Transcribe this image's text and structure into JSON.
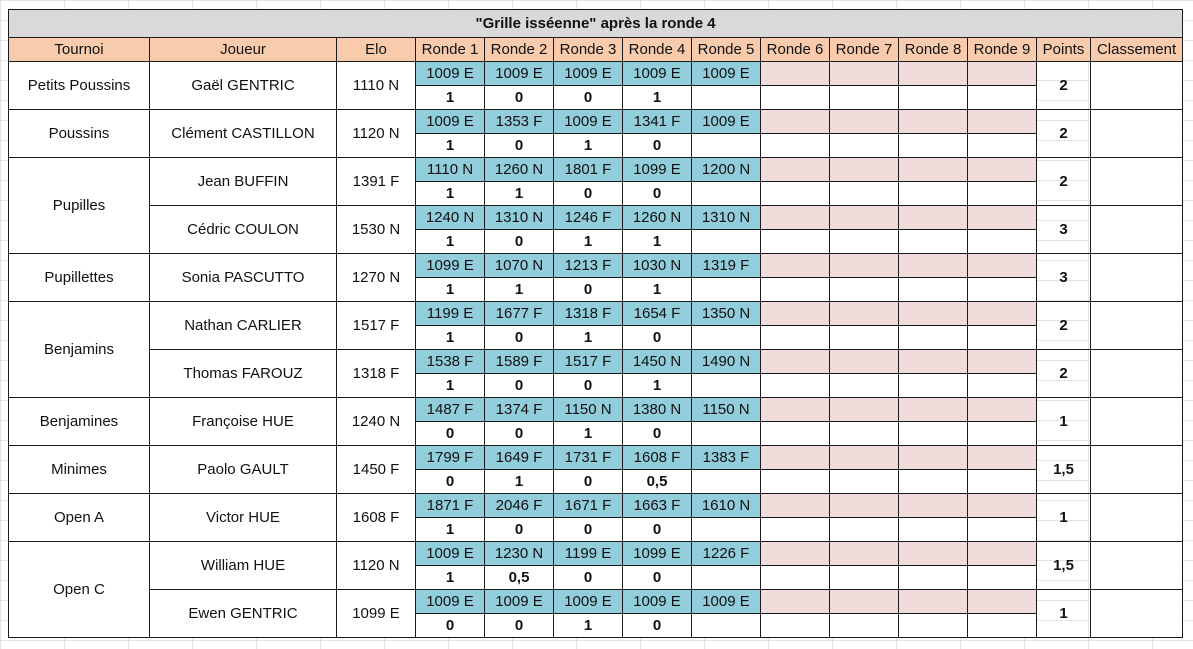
{
  "title": "\"Grille isséenne\" après la ronde 4",
  "headers": [
    "Tournoi",
    "Joueur",
    "Elo",
    "Ronde 1",
    "Ronde 2",
    "Ronde 3",
    "Ronde 4",
    "Ronde 5",
    "Ronde 6",
    "Ronde 7",
    "Ronde 8",
    "Ronde 9",
    "Points",
    "Classement"
  ],
  "colors": {
    "header": "#f8cbad",
    "title": "#d9d9d9",
    "opponent": "#92cddc",
    "future_round": "#f2dcdb"
  },
  "groups": [
    {
      "tournoi": "Petits Poussins",
      "players": [
        {
          "name": "Gaël GENTRIC",
          "elo": "1110 N",
          "opponents": [
            "1009 E",
            "1009 E",
            "1009 E",
            "1009 E",
            "1009 E"
          ],
          "results": [
            "1",
            "0",
            "0",
            "1"
          ],
          "points": "2"
        }
      ]
    },
    {
      "tournoi": "Poussins",
      "players": [
        {
          "name": "Clément CASTILLON",
          "elo": "1120 N",
          "opponents": [
            "1009 E",
            "1353 F",
            "1009 E",
            "1341 F",
            "1009 E"
          ],
          "results": [
            "1",
            "0",
            "1",
            "0"
          ],
          "points": "2"
        }
      ]
    },
    {
      "tournoi": "Pupilles",
      "players": [
        {
          "name": "Jean BUFFIN",
          "elo": "1391 F",
          "opponents": [
            "1110 N",
            "1260 N",
            "1801 F",
            "1099 E",
            "1200 N"
          ],
          "results": [
            "1",
            "1",
            "0",
            "0"
          ],
          "points": "2"
        },
        {
          "name": "Cédric COULON",
          "elo": "1530 N",
          "opponents": [
            "1240 N",
            "1310 N",
            "1246 F",
            "1260 N",
            "1310 N"
          ],
          "results": [
            "1",
            "0",
            "1",
            "1"
          ],
          "points": "3"
        }
      ]
    },
    {
      "tournoi": "Pupillettes",
      "players": [
        {
          "name": "Sonia PASCUTTO",
          "elo": "1270 N",
          "opponents": [
            "1099 E",
            "1070 N",
            "1213 F",
            "1030 N",
            "1319 F"
          ],
          "results": [
            "1",
            "1",
            "0",
            "1"
          ],
          "points": "3"
        }
      ]
    },
    {
      "tournoi": "Benjamins",
      "players": [
        {
          "name": "Nathan CARLIER",
          "elo": "1517 F",
          "opponents": [
            "1199 E",
            "1677 F",
            "1318 F",
            "1654 F",
            "1350 N"
          ],
          "results": [
            "1",
            "0",
            "1",
            "0"
          ],
          "points": "2"
        },
        {
          "name": "Thomas FAROUZ",
          "elo": "1318 F",
          "opponents": [
            "1538 F",
            "1589 F",
            "1517 F",
            "1450 N",
            "1490 N"
          ],
          "results": [
            "1",
            "0",
            "0",
            "1"
          ],
          "points": "2"
        }
      ]
    },
    {
      "tournoi": "Benjamines",
      "players": [
        {
          "name": "Françoise HUE",
          "elo": "1240 N",
          "opponents": [
            "1487 F",
            "1374 F",
            "1150 N",
            "1380 N",
            "1150 N"
          ],
          "results": [
            "0",
            "0",
            "1",
            "0"
          ],
          "points": "1"
        }
      ]
    },
    {
      "tournoi": "Minimes",
      "players": [
        {
          "name": "Paolo GAULT",
          "elo": "1450 F",
          "opponents": [
            "1799 F",
            "1649 F",
            "1731 F",
            "1608  F",
            "1383 F"
          ],
          "results": [
            "0",
            "1",
            "0",
            "0,5"
          ],
          "points": "1,5"
        }
      ]
    },
    {
      "tournoi": "Open A",
      "players": [
        {
          "name": "Victor HUE",
          "elo": "1608 F",
          "opponents": [
            "1871 F",
            "2046 F",
            "1671 F",
            "1663 F",
            "1610 N"
          ],
          "results": [
            "1",
            "0",
            "0",
            "0"
          ],
          "points": "1"
        }
      ]
    },
    {
      "tournoi": "Open C",
      "players": [
        {
          "name": "William HUE",
          "elo": "1120 N",
          "opponents": [
            "1009 E",
            "1230 N",
            "1199 E",
            "1099 E",
            "1226 F"
          ],
          "results": [
            "1",
            "0,5",
            "0",
            "0"
          ],
          "points": "1,5"
        },
        {
          "name": "Ewen GENTRIC",
          "elo": "1099 E",
          "opponents": [
            "1009 E",
            "1009 E",
            "1009 E",
            "1009 E",
            "1009 E"
          ],
          "results": [
            "0",
            "0",
            "1",
            "0"
          ],
          "points": "1"
        }
      ]
    }
  ]
}
